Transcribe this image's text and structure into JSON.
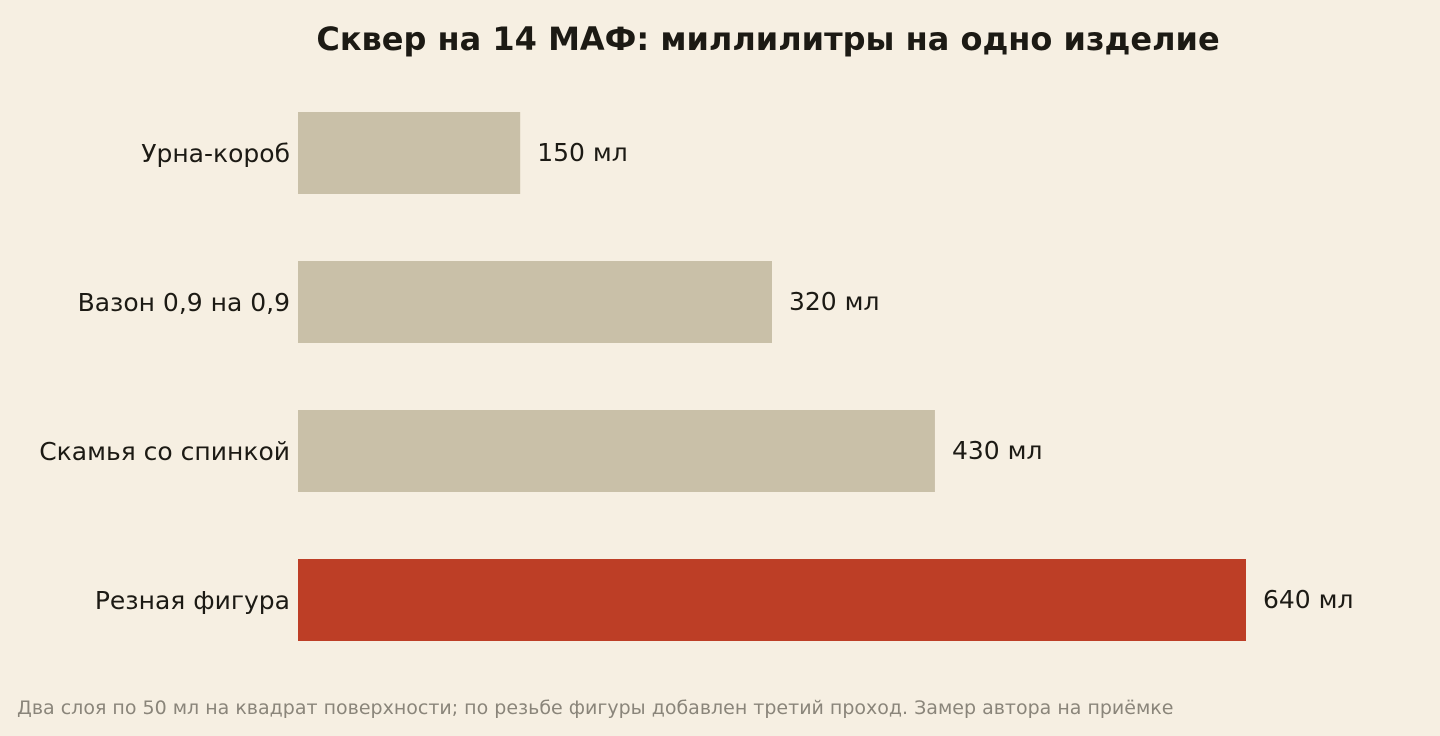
{
  "chart_data": {
    "type": "bar",
    "orientation": "horizontal",
    "title": "Сквер на 14 МАФ: миллилитры на одно изделие",
    "xlabel": "",
    "ylabel": "",
    "categories": [
      "Урна-короб",
      "Вазон 0,9 на 0,9",
      "Скамья со спинкой",
      "Резная фигура"
    ],
    "values": [
      150,
      320,
      430,
      640
    ],
    "value_labels": [
      "150 мл",
      "320 мл",
      "430 мл",
      "640 мл"
    ],
    "xlim": [
      0,
      640
    ],
    "grid": false,
    "legend": "none",
    "highlight_index": 3,
    "colors": {
      "bar": "#c9c0a8",
      "highlight": "#bd3e26",
      "background": "#f6efe2",
      "text": "#1c1a14",
      "footnote": "#8a857a"
    },
    "footnote": "Два слоя по 50 мл на квадрат поверхности; по резьбе фигуры добавлен третий проход. Замер автора на приёмке"
  }
}
